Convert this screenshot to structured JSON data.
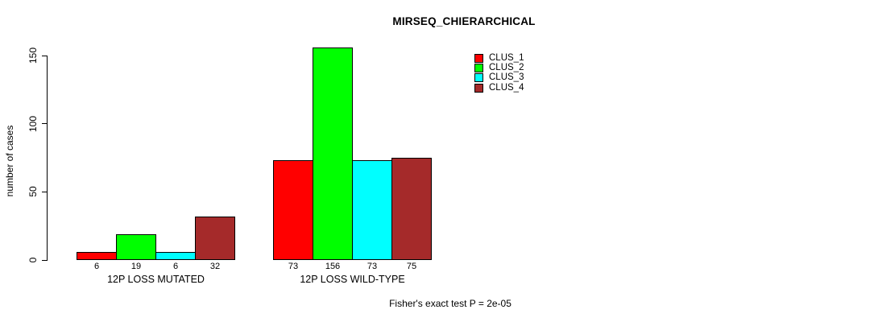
{
  "chart_data": {
    "type": "bar",
    "title": "MIRSEQ_CHIERARCHICAL",
    "ylabel": "number of cases",
    "xlabel": "",
    "categories": [
      "12P LOSS MUTATED",
      "12P LOSS WILD-TYPE"
    ],
    "series": [
      {
        "name": "CLUS_1",
        "color": "#FF0000",
        "values": [
          6,
          73
        ]
      },
      {
        "name": "CLUS_2",
        "color": "#00FF00",
        "values": [
          19,
          156
        ]
      },
      {
        "name": "CLUS_3",
        "color": "#00FFFF",
        "values": [
          6,
          73
        ]
      },
      {
        "name": "CLUS_4",
        "color": "#A52A2A",
        "values": [
          32,
          75
        ]
      }
    ],
    "yticks": [
      0,
      50,
      100,
      150
    ],
    "ylim": [
      0,
      160
    ],
    "bar_value_labels": true,
    "grid": false,
    "legend_position": "top-right",
    "annotation": "Fisher's exact test P = 2e-05",
    "colors": {
      "background": "#FFFFFF",
      "axis": "#000000",
      "text": "#000000"
    }
  }
}
